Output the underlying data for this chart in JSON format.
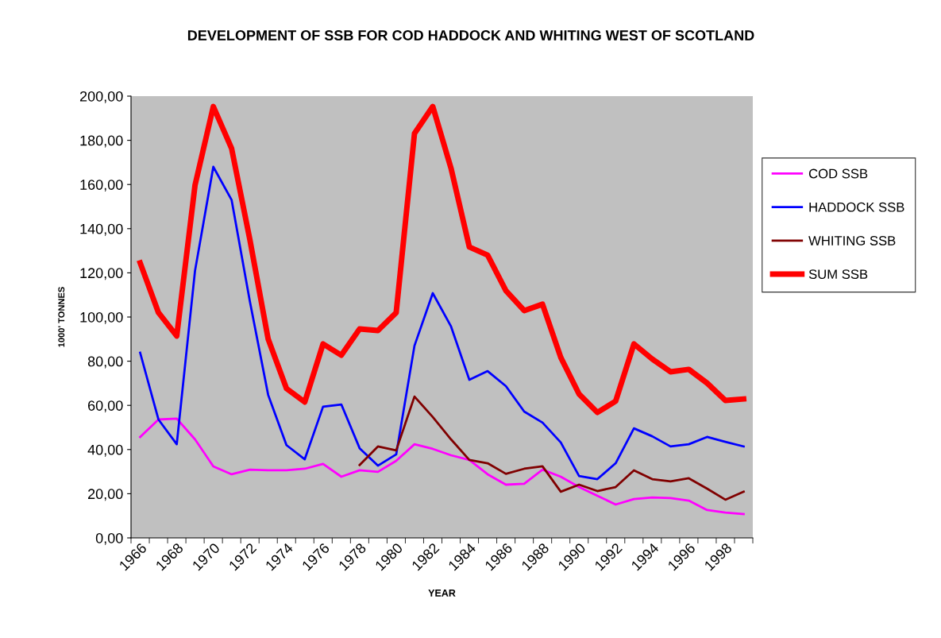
{
  "chart_data": {
    "type": "line",
    "title": "DEVELOPMENT OF SSB FOR COD HADDOCK AND WHITING WEST OF SCOTLAND",
    "xlabel": "YEAR",
    "ylabel": "1000' TONNES",
    "categories": [
      "1966",
      null,
      "1968",
      null,
      "1970",
      null,
      "1972",
      null,
      "1974",
      null,
      "1976",
      null,
      "1978",
      null,
      "1980",
      null,
      "1982",
      null,
      "1984",
      null,
      "1986",
      null,
      "1988",
      null,
      "1990",
      null,
      "1992",
      null,
      "1994",
      null,
      "1996",
      null,
      "1998",
      null
    ],
    "ylim": [
      0,
      200
    ],
    "yticks": [
      {
        "value": 0,
        "label": "0,00"
      },
      {
        "value": 20,
        "label": "20,00"
      },
      {
        "value": 40,
        "label": "40,00"
      },
      {
        "value": 60,
        "label": "60,00"
      },
      {
        "value": 80,
        "label": "80,00"
      },
      {
        "value": 100,
        "label": "100,00"
      },
      {
        "value": 120,
        "label": "120,00"
      },
      {
        "value": 140,
        "label": "140,00"
      },
      {
        "value": 160,
        "label": "160,00"
      },
      {
        "value": 180,
        "label": "180,00"
      },
      {
        "value": 200,
        "label": "200,00"
      }
    ],
    "grid": false,
    "legend": "right",
    "marker": "none",
    "series": [
      {
        "name": "COD SSB",
        "color": "#ff00ff",
        "values": [
          45.7,
          53.6,
          54,
          44.6,
          32.4,
          28.8,
          30.9,
          30.6,
          30.6,
          31.3,
          33.5,
          27.7,
          30.6,
          29.9,
          34.9,
          42.4,
          40.3,
          37.4,
          35.3,
          28.8,
          24.1,
          24.5,
          30.9,
          27.7,
          23,
          19.1,
          15.1,
          17.6,
          18.3,
          18,
          16.9,
          12.6,
          11.5,
          10.8
        ]
      },
      {
        "name": "HADDOCK SSB",
        "color": "#0000ff",
        "values": [
          83.8,
          53.6,
          42.4,
          121,
          168,
          153,
          107,
          64.7,
          42,
          35.6,
          59.4,
          60.4,
          40.6,
          32.7,
          37.8,
          87,
          110.8,
          95.7,
          71.6,
          75.5,
          68.7,
          57.2,
          52.2,
          43.2,
          28,
          26.6,
          33.8,
          49.6,
          46,
          41.4,
          42.4,
          45.7,
          43.5,
          41.4
        ]
      },
      {
        "name": "WHITING SSB",
        "color": "#800000",
        "values": [
          null,
          null,
          null,
          null,
          null,
          null,
          null,
          null,
          null,
          null,
          null,
          null,
          33,
          41.4,
          39.6,
          64,
          54.7,
          44.6,
          35.3,
          33.8,
          29,
          31.3,
          32.4,
          20.9,
          24.1,
          21.2,
          23,
          30.6,
          26.6,
          25.6,
          27,
          22.3,
          17.3,
          20.9
        ]
      },
      {
        "name": "SUM SSB",
        "color": "#ff0000",
        "values": [
          124.5,
          102,
          91.4,
          159.7,
          195.3,
          176.3,
          135,
          90,
          67.6,
          61.5,
          87.8,
          82.7,
          94.6,
          93.9,
          102,
          183.1,
          195.3,
          167.3,
          131.7,
          128,
          111.9,
          102.9,
          105.8,
          81.7,
          65.1,
          56.8,
          61.9,
          87.8,
          81,
          75.2,
          76.3,
          70.1,
          62.2,
          62.9
        ]
      }
    ]
  }
}
